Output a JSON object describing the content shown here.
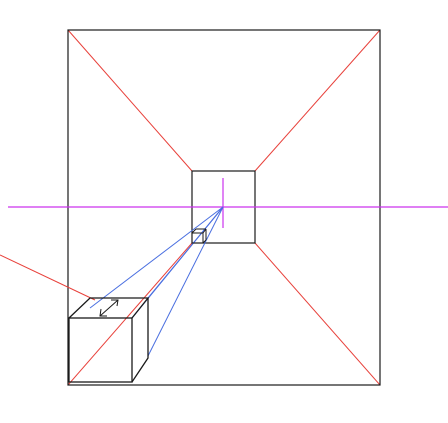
{
  "diagram": {
    "kind": "one-point perspective construction drawing",
    "colors": {
      "outline": "#1a1a1a",
      "diagonal": "#e8403a",
      "horizon": "#cc33ee",
      "projection": "#4a6fe0"
    }
  }
}
